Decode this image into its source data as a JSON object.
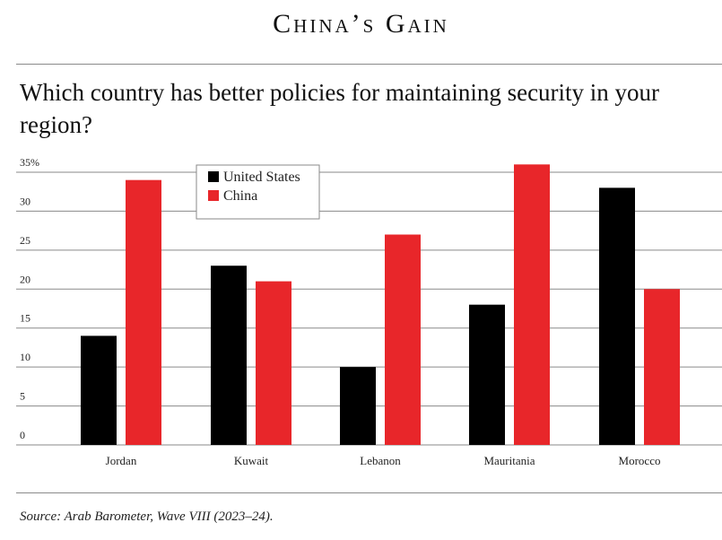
{
  "header": {
    "kicker": "China’s Gain",
    "title": "Which country has better policies for maintaining security in your region?"
  },
  "footer": {
    "source": "Source: Arab Barometer, Wave VIII (2023–24)."
  },
  "colors": {
    "united_states": "#000000",
    "china": "#e8262a",
    "grid": "#8a8a8a"
  },
  "chart_data": {
    "type": "bar",
    "title": "",
    "xlabel": "",
    "ylabel": "",
    "categories": [
      "Jordan",
      "Kuwait",
      "Lebanon",
      "Mauritania",
      "Morocco"
    ],
    "series": [
      {
        "name": "United States",
        "values": [
          14,
          23,
          10,
          18,
          33
        ]
      },
      {
        "name": "China",
        "values": [
          34,
          21,
          27,
          36,
          20
        ]
      }
    ],
    "ylim": [
      0,
      35
    ],
    "yticks": [
      0,
      5,
      10,
      15,
      20,
      25,
      30,
      35
    ],
    "ytick_labels": [
      "0",
      "5",
      "10",
      "15",
      "20",
      "25",
      "30",
      "35%"
    ],
    "grid": true,
    "legend_position": "top-left"
  }
}
